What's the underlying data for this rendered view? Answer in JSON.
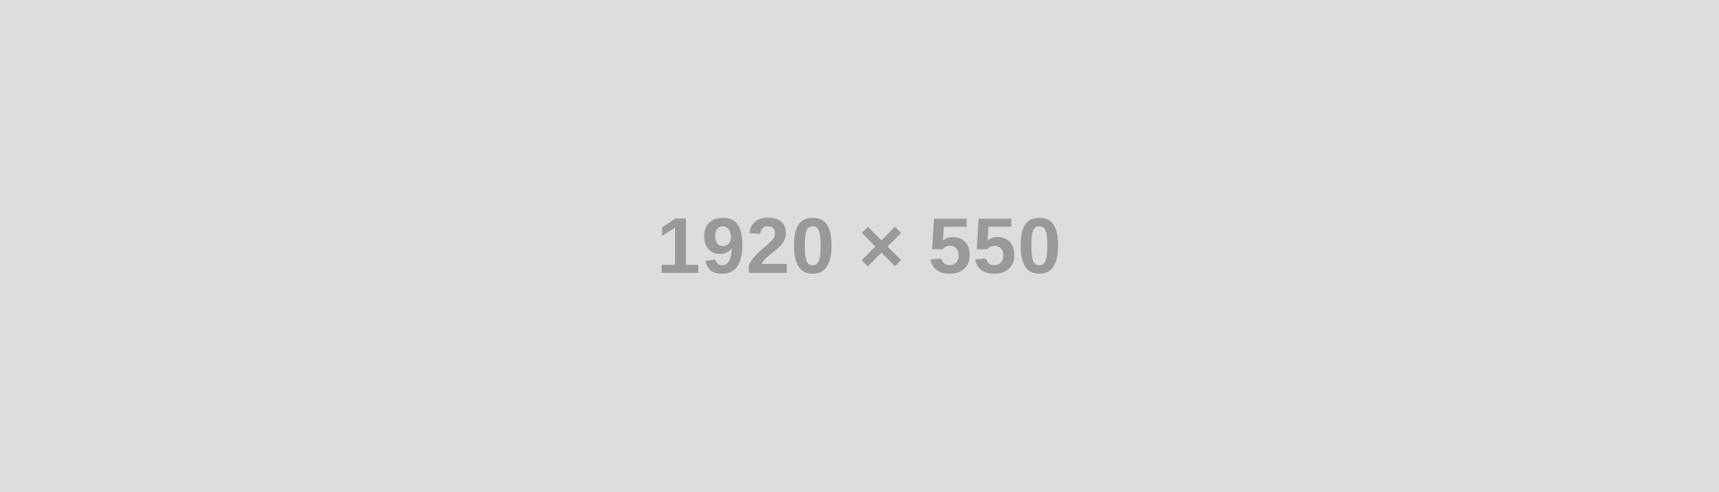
{
  "placeholder": {
    "label": "1920 × 550",
    "background_color": "#dddddd",
    "text_color": "#999999"
  }
}
